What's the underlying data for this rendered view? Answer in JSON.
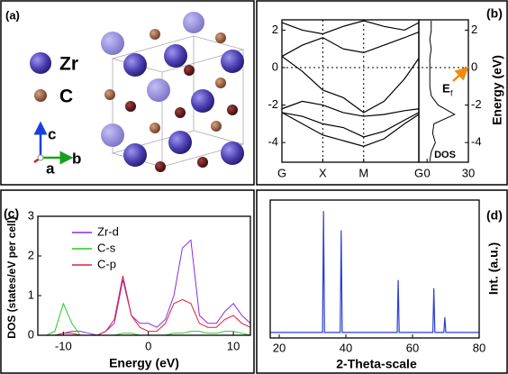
{
  "structure": {
    "label": "(a)",
    "legend": [
      "Zr",
      "C"
    ],
    "axes": [
      "c",
      "a",
      "b"
    ]
  },
  "chart_data": [
    {
      "type": "line",
      "label": "(b)",
      "x": [
        0,
        0.5,
        1,
        1.5,
        2,
        2.5,
        3,
        3.35
      ],
      "xlim": [
        0,
        3.35
      ],
      "xticks": [
        {
          "value": 0,
          "label": "G"
        },
        {
          "value": 1,
          "label": "X"
        },
        {
          "value": 2,
          "label": "M"
        },
        {
          "value": 3.35,
          "label": "G"
        }
      ],
      "ylim": [
        -5.05,
        2.55
      ],
      "yticks": [
        -4,
        -2,
        0,
        2
      ],
      "y2lim": [
        -5.05,
        2.55
      ],
      "y2ticks": [
        -4,
        -2,
        0,
        2
      ],
      "y_label": "Energy (eV)",
      "fermi_level": 0,
      "fermi_label": [
        "E",
        "f"
      ],
      "series": [
        {
          "color": "#000000",
          "values": [
            -2.4,
            -3.0,
            -3.6,
            -3.9,
            -4.2,
            -3.8,
            -3.0,
            -2.5
          ]
        },
        {
          "color": "#000000",
          "values": [
            -2.4,
            -2.6,
            -3.0,
            -3.2,
            -3.7,
            -3.4,
            -2.8,
            -2.4
          ]
        },
        {
          "color": "#000000",
          "values": [
            -2.2,
            -1.8,
            -2.0,
            -2.4,
            -2.6,
            -2.5,
            -2.3,
            -2.2
          ]
        },
        {
          "color": "#000000",
          "values": [
            0.6,
            -0.2,
            -1.2,
            -1.6,
            -2.4,
            -1.8,
            -0.6,
            0.5
          ]
        },
        {
          "color": "#000000",
          "values": [
            0.6,
            1.2,
            1.6,
            1.0,
            0.8,
            1.2,
            1.6,
            1.9
          ]
        },
        {
          "color": "#000000",
          "values": [
            2.4,
            2.0,
            1.8,
            2.2,
            2.5,
            2.2,
            2.0,
            2.4
          ]
        }
      ],
      "dos_panel": {
        "label": "DOS",
        "energy": [
          -5,
          -4.5,
          -4,
          -3.5,
          -3,
          -2.5,
          -2,
          -1.5,
          -1,
          -0.5,
          0,
          0.5,
          1,
          1.5,
          2,
          2.5
        ],
        "values": [
          2,
          3,
          6,
          4,
          5,
          20,
          8,
          3,
          2,
          2,
          2,
          2,
          3,
          2,
          3,
          3
        ],
        "xlim": [
          -6,
          30
        ],
        "xticks": [
          0,
          30
        ],
        "color": "#000000"
      }
    },
    {
      "type": "line",
      "label": "(c)",
      "x": [
        -12,
        -11,
        -10,
        -9,
        -8,
        -7,
        -6,
        -5,
        -4,
        -3,
        -2,
        -1,
        0,
        1,
        2,
        3,
        4,
        5,
        6,
        7,
        8,
        9,
        10,
        11,
        12
      ],
      "xlim": [
        -13,
        12
      ],
      "xticks": [
        -10,
        0,
        10
      ],
      "ylim": [
        0,
        3
      ],
      "yticks": [
        0,
        1,
        2,
        3
      ],
      "x_label": "Energy (eV)",
      "y_label": "DOS (states/eV per cell)",
      "series": [
        {
          "name": "Zr-d",
          "color": "#8a2be2",
          "values": [
            0,
            0,
            0.05,
            0.1,
            0.1,
            0.05,
            0,
            0.1,
            0.3,
            1.4,
            0.5,
            0.3,
            0.3,
            0.2,
            0.4,
            1.0,
            2.2,
            2.4,
            0.5,
            0.3,
            0.3,
            0.6,
            0.8,
            0.5,
            0.3
          ]
        },
        {
          "name": "C-s",
          "color": "#22cc22",
          "values": [
            0,
            0.1,
            0.8,
            0.3,
            0,
            0,
            0,
            0,
            0,
            0.05,
            0.05,
            0,
            0,
            0,
            0,
            0.05,
            0.05,
            0.1,
            0.1,
            0.05,
            0.05,
            0.1,
            0.1,
            0.05,
            0
          ]
        },
        {
          "name": "C-p",
          "color": "#e0203a",
          "values": [
            0,
            0,
            0.05,
            0.05,
            0,
            0,
            0,
            0.1,
            0.4,
            1.5,
            0.5,
            0.2,
            0.1,
            0.1,
            0.3,
            0.8,
            0.9,
            0.8,
            0.3,
            0.2,
            0.2,
            0.4,
            0.5,
            0.3,
            0.2
          ]
        }
      ]
    },
    {
      "type": "line",
      "label": "(d)",
      "x": [
        17.3,
        33,
        33.3,
        33.6,
        38.3,
        38.6,
        38.9,
        55.4,
        55.7,
        56,
        66.1,
        66.4,
        66.7,
        69.4,
        69.7,
        70,
        80
      ],
      "xlim": [
        17.3,
        80
      ],
      "xticks": [
        20,
        40,
        60,
        80
      ],
      "ylim": [
        0,
        1
      ],
      "x_label": "2-Theta-scale",
      "y_label": "Int. (a.u.)",
      "series": [
        {
          "color": "#2a3fd0",
          "values": [
            0.04,
            0.04,
            0.92,
            0.04,
            0.04,
            0.78,
            0.04,
            0.04,
            0.42,
            0.04,
            0.04,
            0.36,
            0.04,
            0.04,
            0.15,
            0.04,
            0.04
          ]
        }
      ]
    }
  ]
}
